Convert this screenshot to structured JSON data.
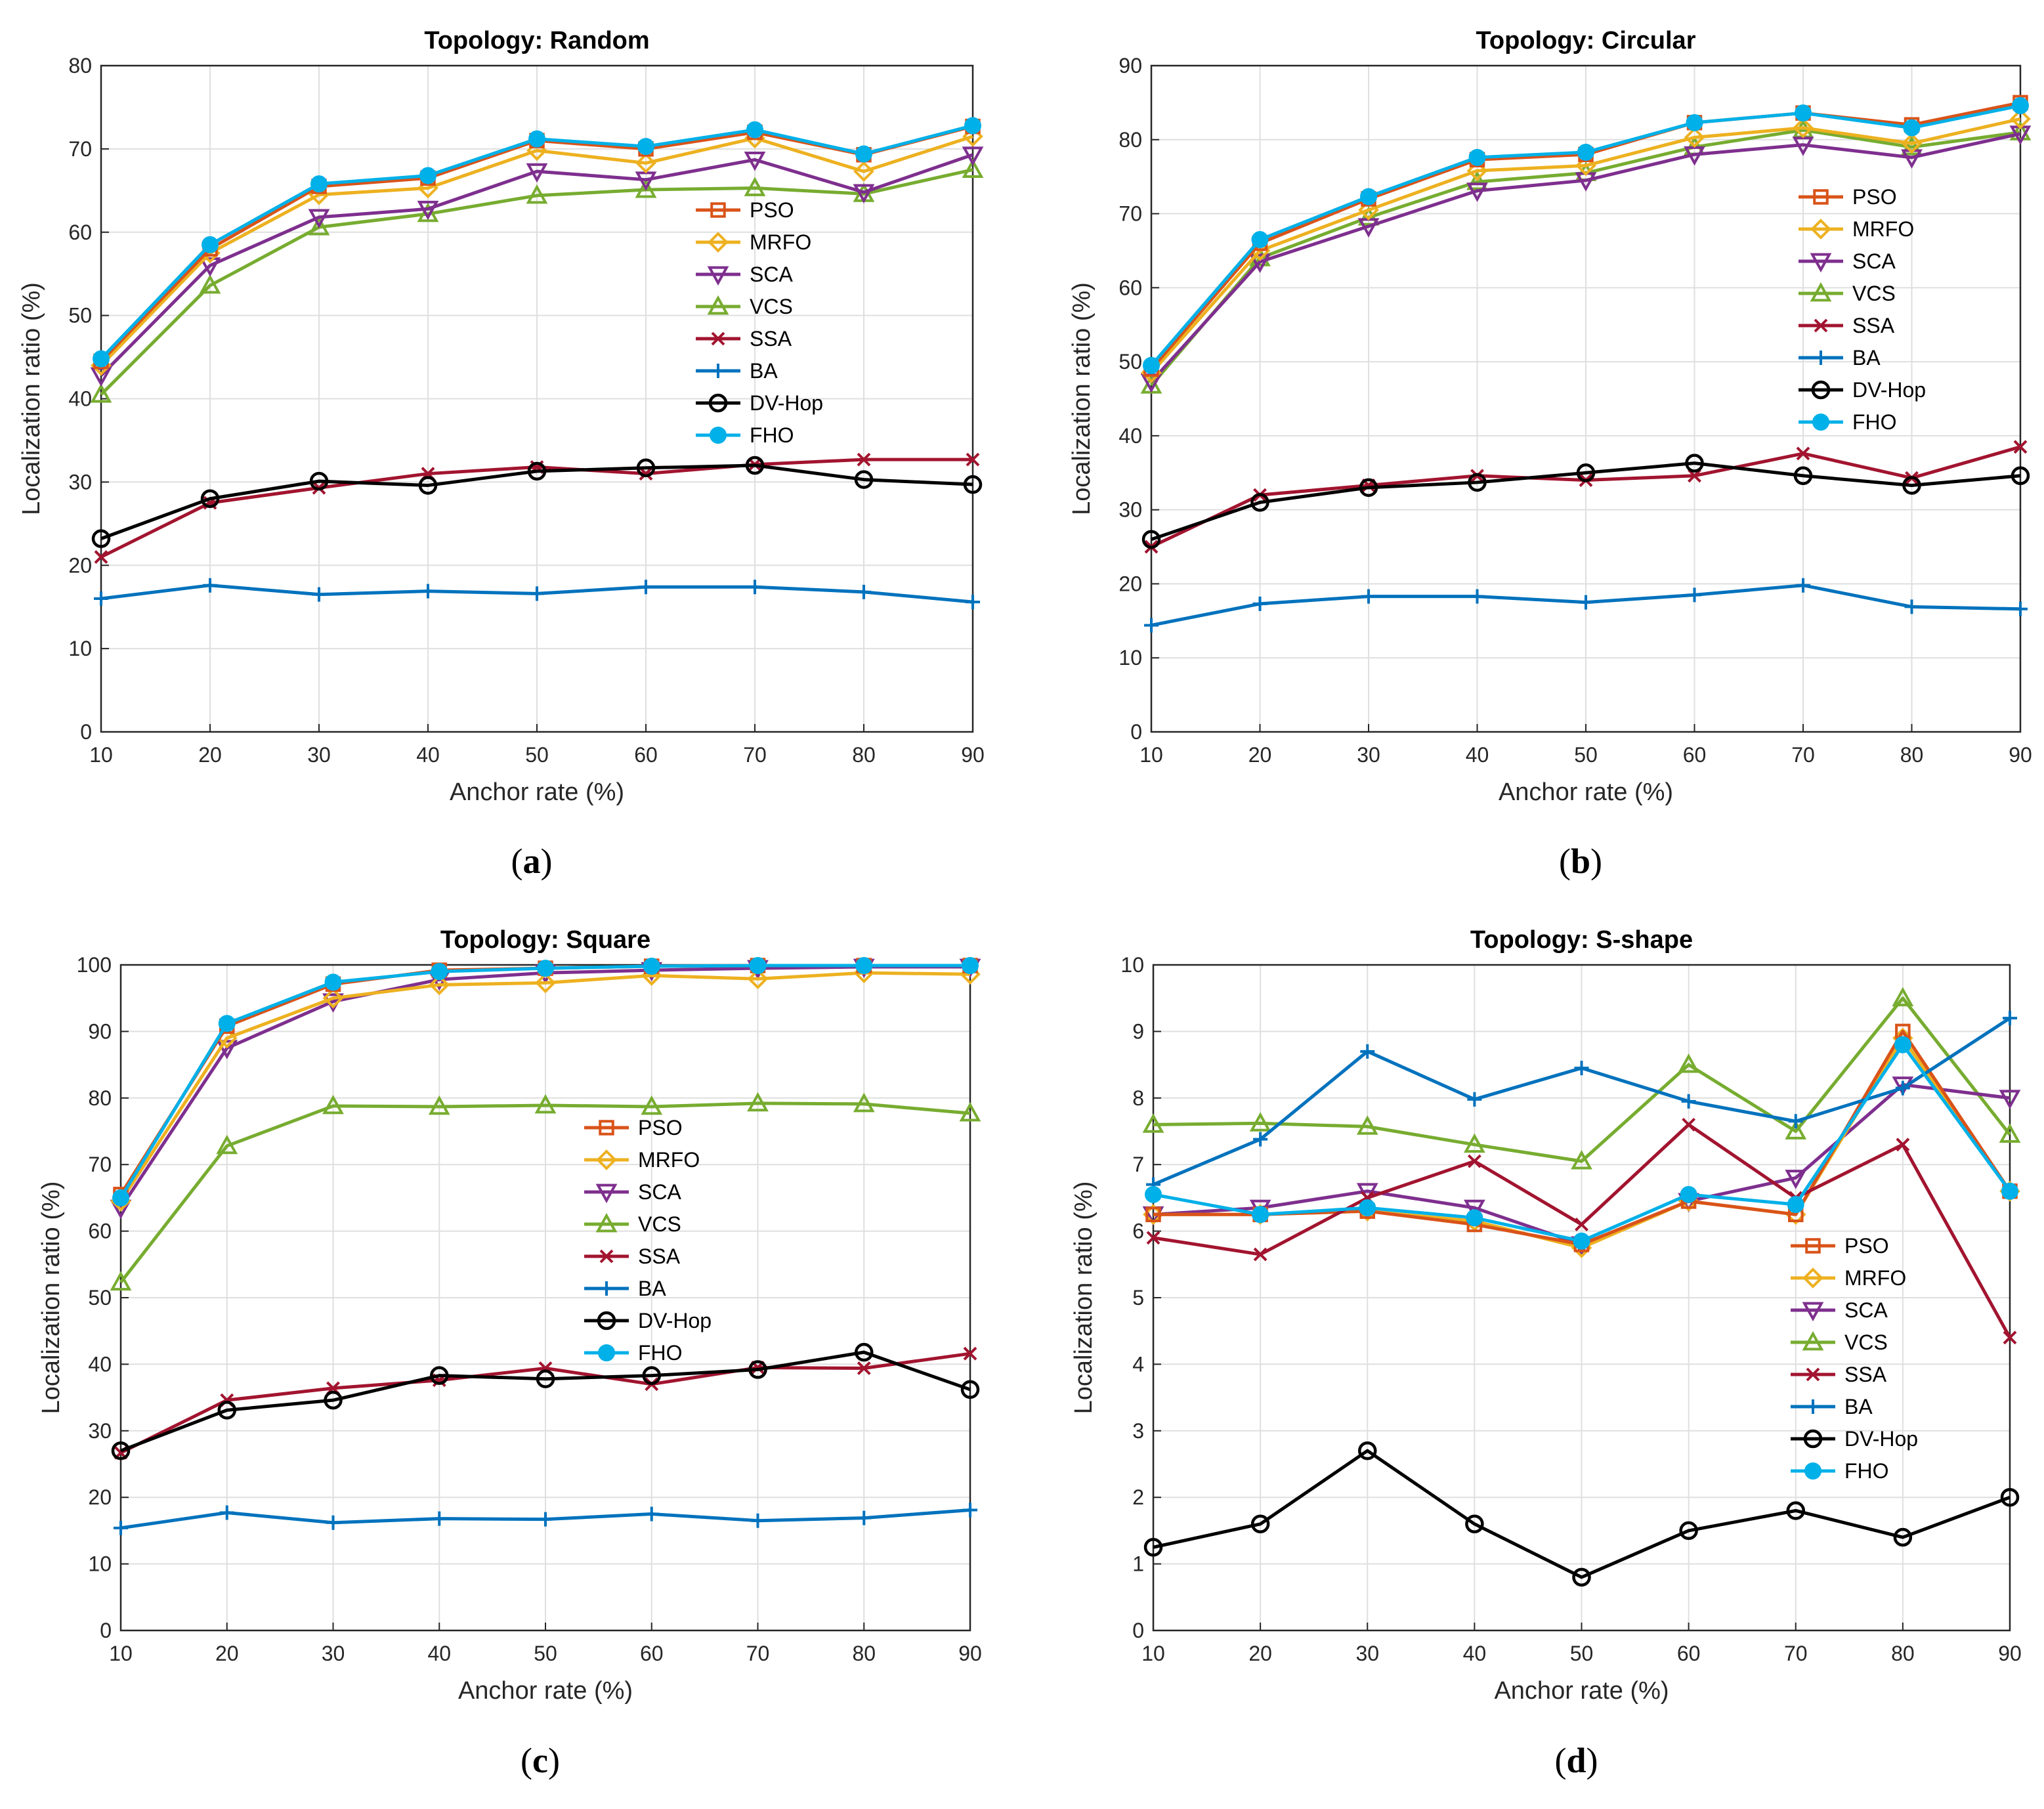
{
  "series_styles": [
    {
      "name": "PSO",
      "color": "#D95319",
      "marker": "square"
    },
    {
      "name": "MRFO",
      "color": "#EDB120",
      "marker": "diamond"
    },
    {
      "name": "SCA",
      "color": "#7E2F8E",
      "marker": "triangle-down"
    },
    {
      "name": "VCS",
      "color": "#77AC30",
      "marker": "triangle-up"
    },
    {
      "name": "SSA",
      "color": "#A2142F",
      "marker": "x"
    },
    {
      "name": "BA",
      "color": "#0072BD",
      "marker": "plus"
    },
    {
      "name": "DV-Hop",
      "color": "#000000",
      "marker": "circle-open"
    },
    {
      "name": "FHO",
      "color": "#00B0E8",
      "marker": "circle-filled"
    }
  ],
  "chart_data": [
    {
      "type": "line",
      "sublabel": "a",
      "title": "Topology: Random",
      "xlabel": "Anchor rate (%)",
      "ylabel": "Localization ratio (%)",
      "x": [
        10,
        20,
        30,
        40,
        50,
        60,
        70,
        80,
        90
      ],
      "xlim": [
        10,
        90
      ],
      "ylim": [
        0,
        80
      ],
      "yticks": [
        0,
        10,
        20,
        30,
        40,
        50,
        60,
        70,
        80
      ],
      "grid": true,
      "legend_position": "center-right",
      "series": [
        {
          "name": "PSO",
          "values": [
            44.5,
            58,
            65.5,
            66.5,
            71,
            70,
            72,
            69.3,
            72.7
          ]
        },
        {
          "name": "MRFO",
          "values": [
            44,
            57.5,
            64.5,
            65.3,
            69.8,
            68.3,
            71.3,
            67.3,
            71.5
          ]
        },
        {
          "name": "SCA",
          "values": [
            42.8,
            56,
            61.8,
            62.8,
            67.3,
            66.3,
            68.7,
            64.8,
            69.3
          ]
        },
        {
          "name": "VCS",
          "values": [
            40.5,
            53.6,
            60.6,
            62.2,
            64.4,
            65.1,
            65.3,
            64.6,
            67.5
          ]
        },
        {
          "name": "SSA",
          "values": [
            21,
            27.5,
            29.3,
            31,
            31.8,
            31,
            32.1,
            32.7,
            32.7
          ]
        },
        {
          "name": "BA",
          "values": [
            16,
            17.6,
            16.5,
            16.9,
            16.6,
            17.4,
            17.4,
            16.8,
            15.6
          ]
        },
        {
          "name": "DV-Hop",
          "values": [
            23.2,
            28,
            30.1,
            29.6,
            31.3,
            31.7,
            32,
            30.3,
            29.7
          ]
        },
        {
          "name": "FHO",
          "values": [
            44.8,
            58.5,
            65.8,
            66.8,
            71.2,
            70.3,
            72.3,
            69.4,
            72.8
          ]
        }
      ]
    },
    {
      "type": "line",
      "sublabel": "b",
      "title": "Topology: Circular",
      "xlabel": "Anchor rate (%)",
      "ylabel": "Localization ratio (%)",
      "x": [
        10,
        20,
        30,
        40,
        50,
        60,
        70,
        80,
        90
      ],
      "xlim": [
        10,
        90
      ],
      "ylim": [
        0,
        90
      ],
      "yticks": [
        0,
        10,
        20,
        30,
        40,
        50,
        60,
        70,
        80,
        90
      ],
      "grid": true,
      "legend_position": "center-right",
      "series": [
        {
          "name": "PSO",
          "values": [
            49,
            66,
            72,
            77.3,
            78,
            82.3,
            83.6,
            82,
            85
          ]
        },
        {
          "name": "MRFO",
          "values": [
            48.5,
            65,
            70.5,
            75.8,
            76.5,
            80.3,
            81.6,
            79.5,
            82.8
          ]
        },
        {
          "name": "SCA",
          "values": [
            47.3,
            63.5,
            68.3,
            73.1,
            74.5,
            78,
            79.3,
            77.6,
            80.8
          ]
        },
        {
          "name": "VCS",
          "values": [
            46.8,
            64,
            69.5,
            74.3,
            75.5,
            79,
            81.3,
            79,
            81
          ]
        },
        {
          "name": "SSA",
          "values": [
            25,
            32,
            33.3,
            34.6,
            34,
            34.6,
            37.6,
            34.3,
            38.5
          ]
        },
        {
          "name": "BA",
          "values": [
            14.4,
            17.3,
            18.3,
            18.3,
            17.5,
            18.5,
            19.8,
            16.9,
            16.6
          ]
        },
        {
          "name": "DV-Hop",
          "values": [
            26,
            31,
            33,
            33.7,
            35,
            36.3,
            34.6,
            33.3,
            34.6
          ]
        },
        {
          "name": "FHO",
          "values": [
            49.5,
            66.5,
            72.3,
            77.6,
            78.3,
            82.3,
            83.6,
            81.6,
            84.6
          ]
        }
      ]
    },
    {
      "type": "line",
      "sublabel": "c",
      "title": "Topology: Square",
      "xlabel": "Anchor rate (%)",
      "ylabel": "Localization ratio (%)",
      "x": [
        10,
        20,
        30,
        40,
        50,
        60,
        70,
        80,
        90
      ],
      "xlim": [
        10,
        90
      ],
      "ylim": [
        0,
        100
      ],
      "yticks": [
        0,
        10,
        20,
        30,
        40,
        50,
        60,
        70,
        80,
        90,
        100
      ],
      "grid": true,
      "legend_position": "center-right",
      "series": [
        {
          "name": "PSO",
          "values": [
            65.5,
            90.8,
            97.1,
            99.2,
            99.5,
            99.8,
            99.9,
            99.9,
            99.9
          ]
        },
        {
          "name": "MRFO",
          "values": [
            64.5,
            89,
            95,
            97,
            97.3,
            98.4,
            97.9,
            98.8,
            98.6
          ]
        },
        {
          "name": "SCA",
          "values": [
            63.5,
            87.5,
            94.5,
            97.8,
            98.8,
            99.2,
            99.5,
            99.7,
            99.7
          ]
        },
        {
          "name": "VCS",
          "values": [
            52.3,
            72.8,
            78.8,
            78.7,
            78.9,
            78.7,
            79.2,
            79.1,
            77.7
          ]
        },
        {
          "name": "SSA",
          "values": [
            26.7,
            34.6,
            36.4,
            37.6,
            39.4,
            37,
            39.5,
            39.4,
            41.6
          ]
        },
        {
          "name": "BA",
          "values": [
            15.4,
            17.7,
            16.2,
            16.8,
            16.7,
            17.5,
            16.5,
            16.9,
            18.1
          ]
        },
        {
          "name": "DV-Hop",
          "values": [
            27,
            33.1,
            34.6,
            38.3,
            37.8,
            38.3,
            39.2,
            41.8,
            36.2
          ]
        },
        {
          "name": "FHO",
          "values": [
            65,
            91.2,
            97.4,
            99,
            99.5,
            99.8,
            99.9,
            99.9,
            99.9
          ]
        }
      ]
    },
    {
      "type": "line",
      "sublabel": "d",
      "title": "Topology: S-shape",
      "xlabel": "Anchor rate (%)",
      "ylabel": "Localization ratio (%)",
      "x": [
        10,
        20,
        30,
        40,
        50,
        60,
        70,
        80,
        90
      ],
      "xlim": [
        10,
        90
      ],
      "ylim": [
        0,
        10
      ],
      "yticks": [
        0,
        1,
        2,
        3,
        4,
        5,
        6,
        7,
        8,
        9,
        10
      ],
      "grid": true,
      "legend_position": "center-right",
      "series": [
        {
          "name": "PSO",
          "values": [
            6.25,
            6.25,
            6.3,
            6.1,
            5.8,
            6.45,
            6.25,
            9,
            6.6
          ]
        },
        {
          "name": "MRFO",
          "values": [
            6.25,
            6.25,
            6.3,
            6.15,
            5.75,
            6.45,
            6.25,
            8.9,
            6.6
          ]
        },
        {
          "name": "SCA",
          "values": [
            6.25,
            6.35,
            6.6,
            6.35,
            5.8,
            6.45,
            6.8,
            8.2,
            8
          ]
        },
        {
          "name": "VCS",
          "values": [
            7.6,
            7.62,
            7.57,
            7.3,
            7.05,
            8.5,
            7.5,
            9.5,
            7.45
          ]
        },
        {
          "name": "SSA",
          "values": [
            5.9,
            5.65,
            6.5,
            7.05,
            6.1,
            7.6,
            6.5,
            7.3,
            4.4
          ]
        },
        {
          "name": "BA",
          "values": [
            6.7,
            7.38,
            8.7,
            7.98,
            8.45,
            7.95,
            7.65,
            8.15,
            9.2
          ]
        },
        {
          "name": "DV-Hop",
          "values": [
            1.25,
            1.6,
            2.7,
            1.6,
            0.8,
            1.5,
            1.8,
            1.4,
            2
          ]
        },
        {
          "name": "FHO",
          "values": [
            6.55,
            6.25,
            6.35,
            6.2,
            5.85,
            6.55,
            6.4,
            8.8,
            6.6
          ]
        }
      ]
    }
  ]
}
